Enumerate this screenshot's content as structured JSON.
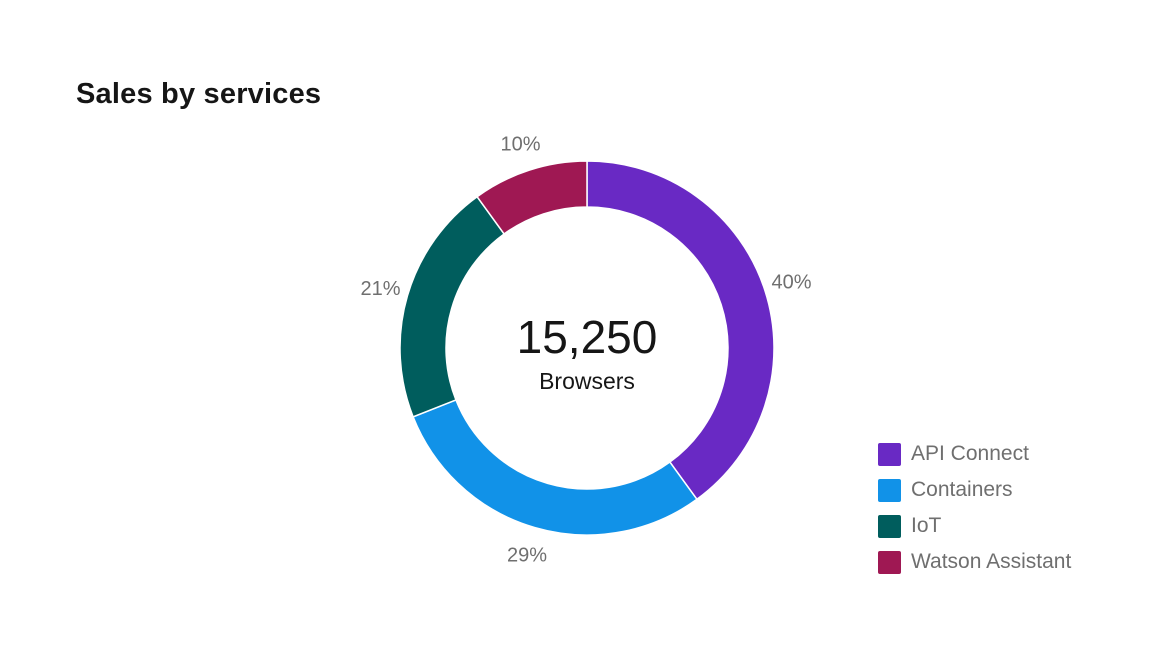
{
  "chart_data": {
    "type": "donut",
    "title": "Sales by services",
    "center": {
      "value": "15,250",
      "caption": "Browsers"
    },
    "categories": [
      "API Connect",
      "Containers",
      "IoT",
      "Watson Assistant"
    ],
    "values": [
      40,
      29,
      21,
      10
    ],
    "unit": "%",
    "colors": [
      "#6929c4",
      "#1192e8",
      "#005d5d",
      "#9f1853"
    ],
    "labels": [
      "40%",
      "29%",
      "21%",
      "10%"
    ],
    "legend_position": "bottom-right"
  }
}
